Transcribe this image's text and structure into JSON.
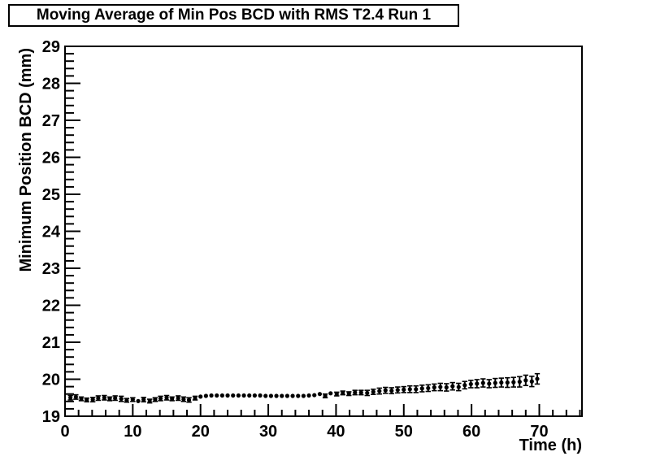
{
  "page": {
    "background": "#ffffff",
    "ink": "#000000"
  },
  "chart_data": {
    "type": "scatter",
    "title": "Moving Average of Min Pos BCD with RMS T2.4 Run 1",
    "xlabel": "Time (h)",
    "ylabel": "Minimum Position BCD (mm)",
    "xlim": [
      0,
      76.3
    ],
    "ylim": [
      19,
      29
    ],
    "x_major_ticks": [
      0,
      10,
      20,
      30,
      40,
      50,
      60,
      70
    ],
    "x_minor_step": 2,
    "y_major_step": 1,
    "y_minor_step": 0.2,
    "grid": false,
    "legend_position": "none",
    "marker": "filled-circle",
    "marker_color": "#000000",
    "error_bars": "vertical-with-caps",
    "series": [
      {
        "name": "moving-average-min-pos-bcd",
        "points": [
          [
            0.8,
            19.5,
            0.06
          ],
          [
            1.6,
            19.52,
            0.06
          ],
          [
            2.4,
            19.47,
            0.05
          ],
          [
            3.2,
            19.44,
            0.05
          ],
          [
            4.1,
            19.45,
            0.06
          ],
          [
            4.9,
            19.49,
            0.06
          ],
          [
            5.8,
            19.5,
            0.06
          ],
          [
            6.6,
            19.47,
            0.05
          ],
          [
            7.4,
            19.49,
            0.06
          ],
          [
            8.3,
            19.47,
            0.07
          ],
          [
            9.1,
            19.43,
            0.05
          ],
          [
            10.0,
            19.45,
            0.05
          ],
          [
            10.8,
            19.41,
            0.04
          ],
          [
            11.6,
            19.45,
            0.06
          ],
          [
            12.5,
            19.41,
            0.05
          ],
          [
            13.3,
            19.45,
            0.05
          ],
          [
            14.1,
            19.48,
            0.06
          ],
          [
            15.0,
            19.5,
            0.06
          ],
          [
            15.8,
            19.47,
            0.05
          ],
          [
            16.7,
            19.49,
            0.06
          ],
          [
            17.5,
            19.46,
            0.06
          ],
          [
            18.3,
            19.44,
            0.06
          ],
          [
            19.2,
            19.49,
            0.05
          ],
          [
            20.0,
            19.53,
            0.03
          ],
          [
            20.8,
            19.55,
            0.01
          ],
          [
            21.6,
            19.56,
            0.01
          ],
          [
            22.4,
            19.56,
            0.01
          ],
          [
            23.2,
            19.56,
            0.01
          ],
          [
            24.0,
            19.56,
            0.01
          ],
          [
            24.8,
            19.56,
            0.01
          ],
          [
            25.6,
            19.56,
            0.01
          ],
          [
            26.4,
            19.56,
            0.01
          ],
          [
            27.2,
            19.56,
            0.01
          ],
          [
            28.0,
            19.56,
            0.01
          ],
          [
            28.8,
            19.56,
            0.01
          ],
          [
            29.6,
            19.55,
            0.01
          ],
          [
            30.4,
            19.55,
            0.01
          ],
          [
            31.2,
            19.55,
            0.01
          ],
          [
            32.0,
            19.55,
            0.01
          ],
          [
            32.8,
            19.55,
            0.01
          ],
          [
            33.6,
            19.55,
            0.01
          ],
          [
            34.4,
            19.55,
            0.02
          ],
          [
            35.2,
            19.55,
            0.03
          ],
          [
            36.0,
            19.56,
            0.04
          ],
          [
            36.8,
            19.57,
            0.04
          ],
          [
            37.6,
            19.6,
            0.04
          ],
          [
            38.4,
            19.55,
            0.05
          ],
          [
            39.2,
            19.62,
            0.04
          ],
          [
            40.1,
            19.6,
            0.05
          ],
          [
            41.0,
            19.63,
            0.05
          ],
          [
            41.9,
            19.61,
            0.05
          ],
          [
            42.8,
            19.64,
            0.06
          ],
          [
            43.7,
            19.64,
            0.06
          ],
          [
            44.6,
            19.63,
            0.07
          ],
          [
            45.5,
            19.66,
            0.07
          ],
          [
            46.4,
            19.68,
            0.08
          ],
          [
            47.3,
            19.7,
            0.08
          ],
          [
            48.2,
            19.69,
            0.08
          ],
          [
            49.1,
            19.71,
            0.08
          ],
          [
            50.0,
            19.72,
            0.08
          ],
          [
            50.9,
            19.73,
            0.09
          ],
          [
            51.8,
            19.73,
            0.09
          ],
          [
            52.7,
            19.75,
            0.09
          ],
          [
            53.6,
            19.76,
            0.09
          ],
          [
            54.5,
            19.78,
            0.09
          ],
          [
            55.4,
            19.79,
            0.1
          ],
          [
            56.3,
            19.78,
            0.1
          ],
          [
            57.2,
            19.81,
            0.1
          ],
          [
            58.1,
            19.79,
            0.1
          ],
          [
            59.0,
            19.84,
            0.1
          ],
          [
            59.9,
            19.87,
            0.1
          ],
          [
            60.8,
            19.88,
            0.11
          ],
          [
            61.7,
            19.9,
            0.11
          ],
          [
            62.6,
            19.88,
            0.11
          ],
          [
            63.5,
            19.9,
            0.12
          ],
          [
            64.4,
            19.91,
            0.12
          ],
          [
            65.3,
            19.91,
            0.13
          ],
          [
            66.2,
            19.92,
            0.13
          ],
          [
            67.1,
            19.93,
            0.14
          ],
          [
            68.0,
            19.97,
            0.14
          ],
          [
            68.9,
            19.94,
            0.14
          ],
          [
            69.7,
            20.01,
            0.14
          ]
        ]
      }
    ]
  }
}
